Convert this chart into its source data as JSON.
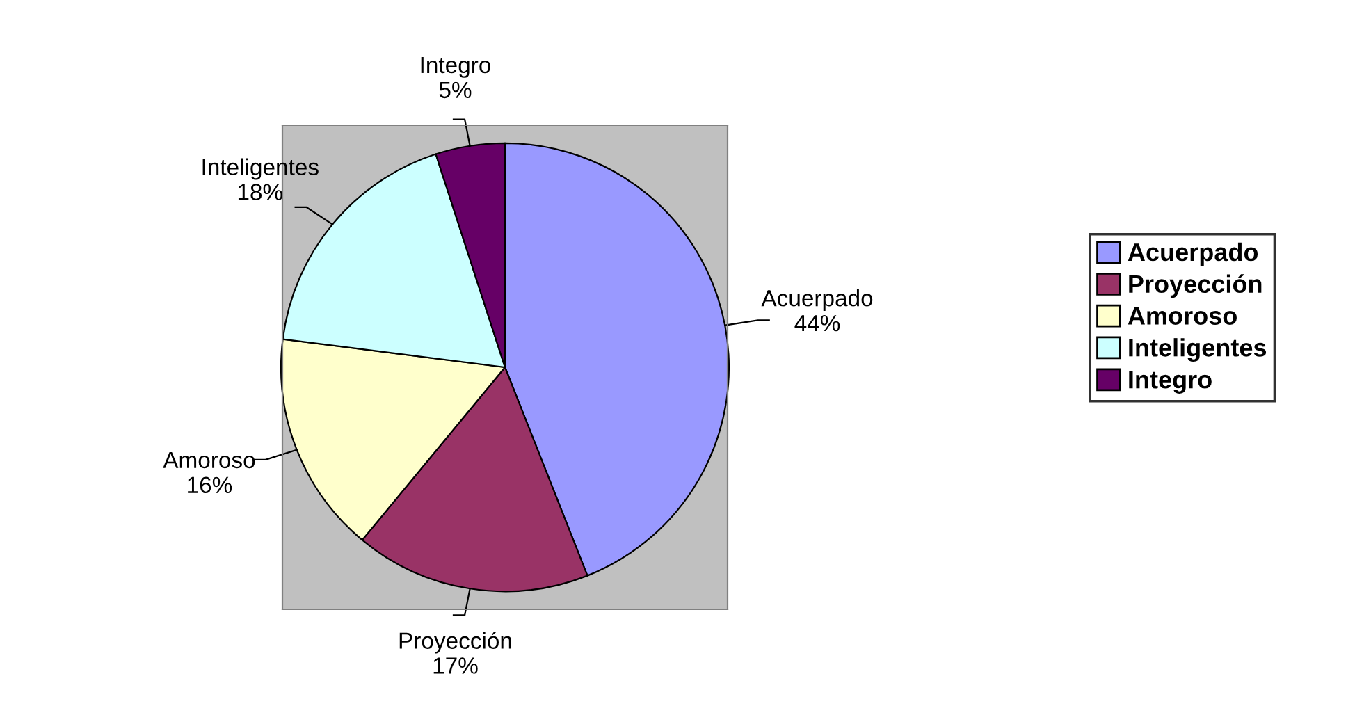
{
  "chart_data": {
    "type": "pie",
    "categories": [
      "Acuerpado",
      "Proyección",
      "Amoroso",
      "Inteligentes",
      "Integro"
    ],
    "values": [
      44,
      17,
      16,
      18,
      5
    ],
    "colors": [
      "#9999ff",
      "#993366",
      "#ffffcc",
      "#ccffff",
      "#660066"
    ],
    "legend": "right",
    "value_labels": [
      "44%",
      "17%",
      "16%",
      "18%",
      "5%"
    ]
  }
}
